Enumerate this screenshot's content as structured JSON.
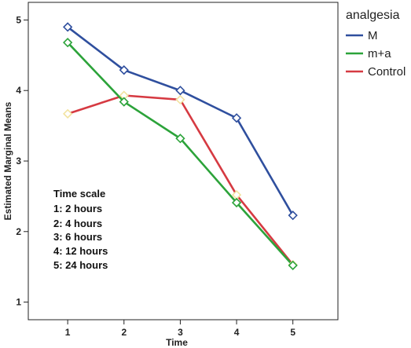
{
  "chart_data": {
    "type": "line",
    "title": "",
    "xlabel": "Time",
    "ylabel": "Estimated Marginal Means",
    "x": [
      1,
      2,
      3,
      4,
      5
    ],
    "xlim": [
      0.3,
      5.8
    ],
    "ylim": [
      0.75,
      5.25
    ],
    "yticks": [
      1,
      2,
      3,
      4,
      5
    ],
    "grid": false,
    "legend": {
      "title": "analgesia",
      "placement": "right"
    },
    "series": [
      {
        "name": "M",
        "color": "#2f4f9e",
        "marker_color": "#2f4f9e",
        "values": [
          4.9,
          4.29,
          4.0,
          3.61,
          2.23
        ]
      },
      {
        "name": "m+a",
        "color": "#2ca33a",
        "marker_color": "#2ca33a",
        "values": [
          4.68,
          3.84,
          3.32,
          2.41,
          1.52
        ]
      },
      {
        "name": "Control",
        "color": "#d63a42",
        "marker_color": "#f2e3a0",
        "values": [
          3.67,
          3.93,
          3.87,
          2.52,
          1.53
        ]
      }
    ],
    "annotation": [
      "Time scale",
      "1: 2 hours",
      "2: 4 hours",
      "3: 6 hours",
      "4: 12 hours",
      "5: 24 hours"
    ]
  }
}
